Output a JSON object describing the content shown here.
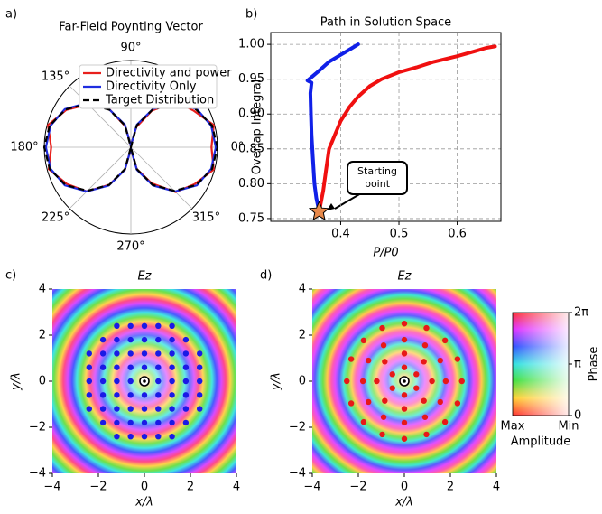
{
  "chart_data": [
    {
      "type": "polar",
      "panel_label": "a)",
      "title": "Far-Field Poynting Vector",
      "angle_ticks": [
        {
          "value": 90,
          "label": "90°"
        },
        {
          "value": 135,
          "label": "135°"
        },
        {
          "value": 180,
          "label": "180°"
        },
        {
          "value": 225,
          "label": "225°"
        },
        {
          "value": 270,
          "label": "270°"
        },
        {
          "value": 315,
          "label": "315°"
        },
        {
          "value": 0,
          "label": "0°"
        }
      ],
      "rlim": [
        0,
        1
      ],
      "theta": [
        0,
        15,
        30,
        45,
        60,
        75,
        90,
        105,
        120,
        135,
        150,
        165,
        180,
        195,
        210,
        225,
        240,
        255,
        270,
        285,
        300,
        315,
        330,
        345
      ],
      "legend": "upper right",
      "series": [
        {
          "name": "Directivity and power",
          "color": "#e8201c",
          "linestyle": "solid",
          "values": [
            0.93,
            0.99,
            0.84,
            0.74,
            0.49,
            0.24,
            0.02,
            0.25,
            0.52,
            0.7,
            0.86,
            0.99,
            0.92,
            0.98,
            0.85,
            0.72,
            0.5,
            0.27,
            0.02,
            0.26,
            0.48,
            0.73,
            0.85,
            0.99
          ]
        },
        {
          "name": "Directivity Only",
          "color": "#1f2de0",
          "linestyle": "solid",
          "values": [
            0.98,
            0.96,
            0.88,
            0.72,
            0.51,
            0.27,
            0.02,
            0.27,
            0.51,
            0.72,
            0.88,
            0.96,
            0.98,
            0.96,
            0.88,
            0.72,
            0.51,
            0.27,
            0.02,
            0.27,
            0.51,
            0.72,
            0.88,
            0.96
          ]
        },
        {
          "name": "Target Distribution",
          "color": "#000000",
          "linestyle": "dashed",
          "values": [
            1,
            0.97,
            0.87,
            0.71,
            0.5,
            0.26,
            0,
            0.26,
            0.5,
            0.71,
            0.87,
            0.97,
            1,
            0.97,
            0.87,
            0.71,
            0.5,
            0.26,
            0,
            0.26,
            0.5,
            0.71,
            0.87,
            0.97
          ]
        }
      ]
    },
    {
      "type": "line",
      "panel_label": "b)",
      "title": "Path in Solution Space",
      "xlabel": "P/P0",
      "ylabel": "Overlap Integral",
      "xlim": [
        0.28,
        0.675
      ],
      "ylim": [
        0.746,
        1.017
      ],
      "xticks": [
        0.4,
        0.5,
        0.6
      ],
      "yticks": [
        0.75,
        {
          "value": 0.8,
          "label": "0.80"
        },
        0.85,
        {
          "value": 0.9,
          "label": "0.90"
        },
        0.95,
        {
          "value": 1,
          "label": "1.00"
        }
      ],
      "grid": true,
      "start_color": "#e8894a",
      "annotation": "Starting point",
      "series": [
        {
          "color": "#f01010",
          "x": [
            0.363,
            0.37,
            0.375,
            0.38,
            0.39,
            0.4,
            0.415,
            0.43,
            0.45,
            0.47,
            0.5,
            0.53,
            0.56,
            0.6,
            0.63,
            0.65,
            0.665
          ],
          "y": [
            0.76,
            0.79,
            0.82,
            0.85,
            0.87,
            0.89,
            0.91,
            0.925,
            0.94,
            0.95,
            0.96,
            0.967,
            0.975,
            0.983,
            0.99,
            0.995,
            0.997
          ]
        },
        {
          "color": "#1020e8",
          "x": [
            0.363,
            0.358,
            0.355,
            0.352,
            0.35,
            0.349,
            0.348,
            0.35,
            0.343,
            0.36,
            0.38,
            0.4,
            0.42,
            0.43
          ],
          "y": [
            0.76,
            0.78,
            0.8,
            0.84,
            0.87,
            0.9,
            0.93,
            0.945,
            0.948,
            0.96,
            0.975,
            0.985,
            0.995,
            1
          ]
        }
      ]
    },
    {
      "type": "field",
      "panel_label": "c)",
      "title": "Ez",
      "xlabel": "x/λ",
      "ylabel": "y/λ",
      "xlim": [
        -4,
        4
      ],
      "ylim": [
        -4,
        4
      ],
      "xticks": [
        {
          "value": -4,
          "label": "−4"
        },
        {
          "value": -2,
          "label": "−2"
        },
        0,
        2,
        4
      ],
      "yticks": [
        {
          "value": -4,
          "label": "−4"
        },
        {
          "value": -2,
          "label": "−2"
        },
        0,
        2,
        4
      ],
      "source": [
        0,
        0
      ],
      "points": {
        "color": "#1a1ae6",
        "x": [
          -1.2,
          -0.6,
          0,
          0.6,
          1.2,
          -1.8,
          -1.2,
          -0.6,
          0,
          0.6,
          1.2,
          1.8,
          -2.4,
          -1.8,
          -1.2,
          -0.6,
          0,
          0.6,
          1.2,
          1.8,
          2.4,
          -2.4,
          -1.8,
          -1.2,
          -0.6,
          0,
          0.6,
          1.2,
          1.8,
          2.4,
          -2.4,
          -1.8,
          -1.2,
          -0.6,
          0.6,
          1.2,
          1.8,
          2.4,
          -2.4,
          -1.8,
          -1.2,
          -0.6,
          0,
          0.6,
          1.2,
          1.8,
          2.4,
          -2.4,
          -1.8,
          -1.2,
          -0.6,
          0,
          0.6,
          1.2,
          1.8,
          2.4,
          -1.8,
          -1.2,
          -0.6,
          0,
          0.6,
          1.2,
          1.8,
          -1.2,
          -0.6,
          0,
          0.6,
          1.2
        ],
        "y": [
          2.4,
          2.4,
          2.4,
          2.4,
          2.4,
          1.8,
          1.8,
          1.8,
          1.8,
          1.8,
          1.8,
          1.8,
          1.2,
          1.2,
          1.2,
          1.2,
          1.2,
          1.2,
          1.2,
          1.2,
          1.2,
          0.6,
          0.6,
          0.6,
          0.6,
          0.6,
          0.6,
          0.6,
          0.6,
          0.6,
          0,
          0,
          0,
          0,
          0,
          0,
          0,
          0,
          -0.6,
          -0.6,
          -0.6,
          -0.6,
          -0.6,
          -0.6,
          -0.6,
          -0.6,
          -0.6,
          -1.2,
          -1.2,
          -1.2,
          -1.2,
          -1.2,
          -1.2,
          -1.2,
          -1.2,
          -1.2,
          -1.8,
          -1.8,
          -1.8,
          -1.8,
          -1.8,
          -1.8,
          -1.8,
          -2.4,
          -2.4,
          -2.4,
          -2.4,
          -2.4
        ]
      }
    },
    {
      "type": "field",
      "panel_label": "d)",
      "title": "Ez",
      "xlabel": "x/λ",
      "ylabel": "y/λ",
      "xlim": [
        -4,
        4
      ],
      "ylim": [
        -4,
        4
      ],
      "xticks": [
        {
          "value": -4,
          "label": "−4"
        },
        {
          "value": -2,
          "label": "−2"
        },
        0,
        2,
        4
      ],
      "yticks": [
        {
          "value": -4,
          "label": "−4"
        },
        {
          "value": -2,
          "label": "−2"
        },
        0,
        2,
        4
      ],
      "source": [
        0,
        0
      ],
      "points": {
        "color": "#e81818",
        "x": [
          0.52,
          0,
          -0.52,
          -0.52,
          0,
          0.52,
          1.2,
          0.85,
          0,
          -0.85,
          -1.2,
          -0.85,
          0,
          0.85,
          1.8,
          1.56,
          0.9,
          0,
          -0.9,
          -1.56,
          -1.8,
          -1.56,
          -0.9,
          0,
          0.9,
          1.56,
          2.5,
          2.31,
          1.77,
          0.96,
          0,
          -0.96,
          -1.77,
          -2.31,
          -2.5,
          -2.31,
          -1.77,
          -0.96,
          0,
          0.96,
          1.77,
          2.31
        ],
        "y": [
          0.3,
          0.6,
          0.3,
          -0.3,
          -0.6,
          -0.3,
          0,
          0.85,
          1.2,
          0.85,
          0,
          -0.85,
          -1.2,
          -0.85,
          0,
          0.9,
          1.56,
          1.8,
          1.56,
          0.9,
          0,
          -0.9,
          -1.56,
          -1.8,
          -1.56,
          -0.9,
          0,
          0.96,
          1.77,
          2.31,
          2.5,
          2.31,
          1.77,
          0.96,
          0,
          -0.96,
          -1.77,
          -2.31,
          -2.5,
          -2.31,
          -1.77,
          -0.96
        ]
      }
    },
    {
      "type": "colorbar",
      "ylabel": "Phase",
      "xlabel": "Amplitude",
      "amplitude_labels": [
        "Max",
        "Min"
      ],
      "ylim": [
        0,
        6.28318
      ],
      "yticks": [
        {
          "value": 6.28318,
          "label": "2π"
        },
        {
          "value": 3.14159,
          "label": "π"
        },
        0
      ]
    }
  ]
}
